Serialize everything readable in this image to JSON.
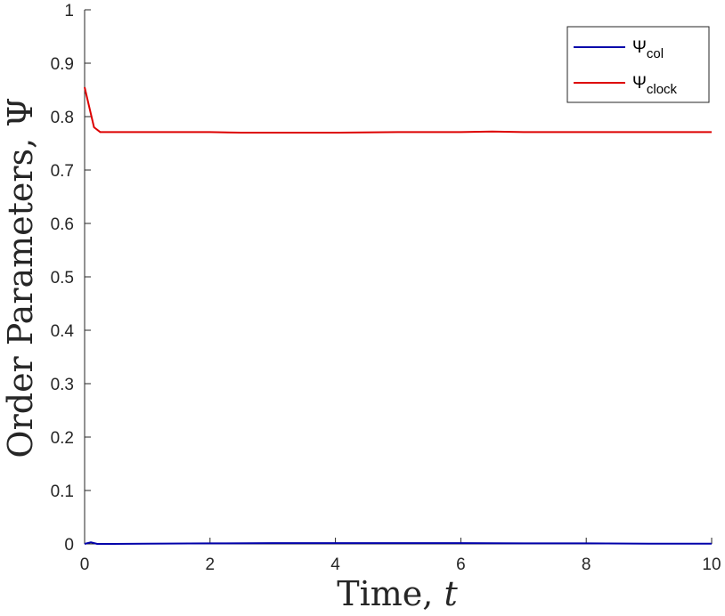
{
  "chart_data": {
    "type": "line",
    "xlabel": "Time, ",
    "xlabel_var": "t",
    "ylabel": "Order Parameters, Ψ",
    "xlim": [
      0,
      10
    ],
    "ylim": [
      0,
      1
    ],
    "xticks": [
      0,
      2,
      4,
      6,
      8,
      10
    ],
    "yticks": [
      0,
      0.1,
      0.2,
      0.3,
      0.4,
      0.5,
      0.6,
      0.7,
      0.8,
      0.9,
      1
    ],
    "grid": false,
    "legend_position": "top-right",
    "series": [
      {
        "name": "Ψ",
        "subscript": "col",
        "color": "#0000aa",
        "x": [
          0,
          0.1,
          0.2,
          0.4,
          1,
          2,
          3,
          4,
          5,
          6,
          7,
          8,
          9,
          10
        ],
        "y": [
          0.0,
          0.003,
          0.0,
          0.0,
          0.0005,
          0.001,
          0.0015,
          0.0015,
          0.0015,
          0.0015,
          0.001,
          0.001,
          0.0005,
          0.0005
        ]
      },
      {
        "name": "Ψ",
        "subscript": "clock",
        "color": "#dd0000",
        "x": [
          0,
          0.15,
          0.25,
          0.5,
          1,
          2,
          2.5,
          3,
          4,
          5,
          6,
          6.5,
          7,
          8,
          9,
          10
        ],
        "y": [
          0.855,
          0.78,
          0.771,
          0.771,
          0.771,
          0.771,
          0.77,
          0.77,
          0.77,
          0.771,
          0.771,
          0.772,
          0.771,
          0.771,
          0.771,
          0.771
        ]
      }
    ]
  }
}
